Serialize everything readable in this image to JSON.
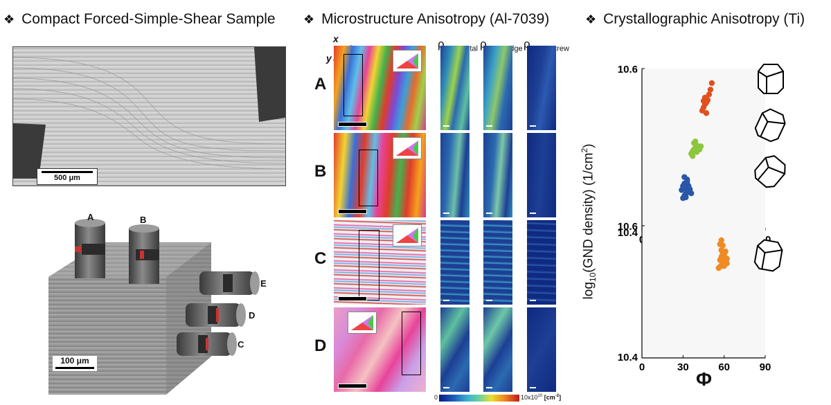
{
  "headers": {
    "bullet": "❖",
    "left": "Compact Forced-Simple-Shear Sample",
    "middle": "Microstructure Anisotropy (Al-7039)",
    "right": "Crystallographic Anisotropy (Ti)"
  },
  "sem": {
    "scalebar": "500 μm"
  },
  "cube": {
    "scalebar": "100 μm",
    "pillar_labels": [
      "A",
      "B",
      "E",
      "D",
      "C"
    ]
  },
  "micro": {
    "axis_x": "x",
    "axis_y": "y",
    "row_labels": [
      "A",
      "B",
      "C",
      "D"
    ],
    "col_rho": [
      "ρ",
      "ρ",
      "ρ"
    ],
    "col_sub": [
      "GND,total",
      "GND,edge",
      "GND,screw"
    ],
    "legend_ticks": {
      "t111": "[111]",
      "t001": "[001]",
      "t101": "[101]"
    },
    "colorbar_min": "0",
    "colorbar_max": "10x10",
    "colorbar_exp": "10",
    "colorbar_unit": " [cm",
    "colorbar_unit_exp": "-2",
    "colorbar_unit_end": "]"
  },
  "chart_data": [
    {
      "type": "scatter",
      "title": "",
      "xlabel": "",
      "ylabel": "log10(GND density) (1/cm²)",
      "xlim": [
        0,
        90
      ],
      "ylim": [
        10.4,
        10.6
      ],
      "xticks": [
        "0",
        "30",
        "60",
        "90"
      ],
      "yticks": [
        "10.4",
        "10.6"
      ],
      "series": [
        {
          "name": "blue cluster",
          "color": "#2a56a8",
          "points": [
            [
              30,
              10.44
            ],
            [
              31,
              10.443
            ],
            [
              32,
              10.445
            ],
            [
              33,
              10.447
            ],
            [
              34,
              10.449
            ],
            [
              35,
              10.451
            ],
            [
              32,
              10.452
            ],
            [
              34,
              10.455
            ],
            [
              31,
              10.458
            ],
            [
              33,
              10.46
            ],
            [
              30,
              10.455
            ],
            [
              35,
              10.448
            ],
            [
              32,
              10.441
            ],
            [
              36,
              10.446
            ],
            [
              29,
              10.45
            ],
            [
              33,
              10.463
            ],
            [
              31,
              10.466
            ]
          ]
        },
        {
          "name": "green cluster",
          "color": "#8cc63f",
          "points": [
            [
              36,
              10.495
            ],
            [
              37,
              10.498
            ],
            [
              38,
              10.5
            ],
            [
              39,
              10.502
            ],
            [
              40,
              10.505
            ],
            [
              41,
              10.503
            ],
            [
              42,
              10.5
            ],
            [
              38,
              10.508
            ],
            [
              40,
              10.497
            ],
            [
              37,
              10.492
            ],
            [
              39,
              10.51
            ],
            [
              43,
              10.504
            ]
          ]
        },
        {
          "name": "red cluster",
          "color": "#e0501e",
          "points": [
            [
              44,
              10.548
            ],
            [
              45,
              10.552
            ],
            [
              46,
              10.556
            ],
            [
              47,
              10.558
            ],
            [
              48,
              10.561
            ],
            [
              46,
              10.564
            ],
            [
              49,
              10.568
            ],
            [
              47,
              10.545
            ],
            [
              45,
              10.56
            ],
            [
              50,
              10.574
            ],
            [
              51,
              10.582
            ]
          ]
        }
      ]
    },
    {
      "type": "scatter",
      "title": "",
      "xlabel": "Φ",
      "ylabel": "log10(GND density) (1/cm²)",
      "xlim": [
        0,
        90
      ],
      "ylim": [
        10.4,
        10.6
      ],
      "xticks": [
        "0",
        "30",
        "60",
        "90"
      ],
      "yticks": [
        "10.4",
        "10.6"
      ],
      "series": [
        {
          "name": "cluster",
          "color": "#f08a24",
          "points": [
            [
              56,
              10.536
            ],
            [
              57,
              10.538
            ],
            [
              58,
              10.54
            ],
            [
              59,
              10.542
            ],
            [
              60,
              10.545
            ],
            [
              61,
              10.548
            ],
            [
              62,
              10.55
            ],
            [
              58,
              10.553
            ],
            [
              60,
              10.556
            ],
            [
              59,
              10.559
            ],
            [
              61,
              10.561
            ],
            [
              57,
              10.548
            ],
            [
              62,
              10.543
            ],
            [
              60,
              10.539
            ],
            [
              58,
              10.563
            ],
            [
              57,
              10.572
            ],
            [
              58,
              10.578
            ],
            [
              59,
              10.57
            ]
          ]
        }
      ]
    }
  ],
  "ti_axis": {
    "ylabel_pre": "log",
    "ylabel_sub": "10",
    "ylabel_post": "(GND density) (1/cm",
    "ylabel_sup": "2",
    "ylabel_end": ")",
    "phi": "Φ"
  }
}
